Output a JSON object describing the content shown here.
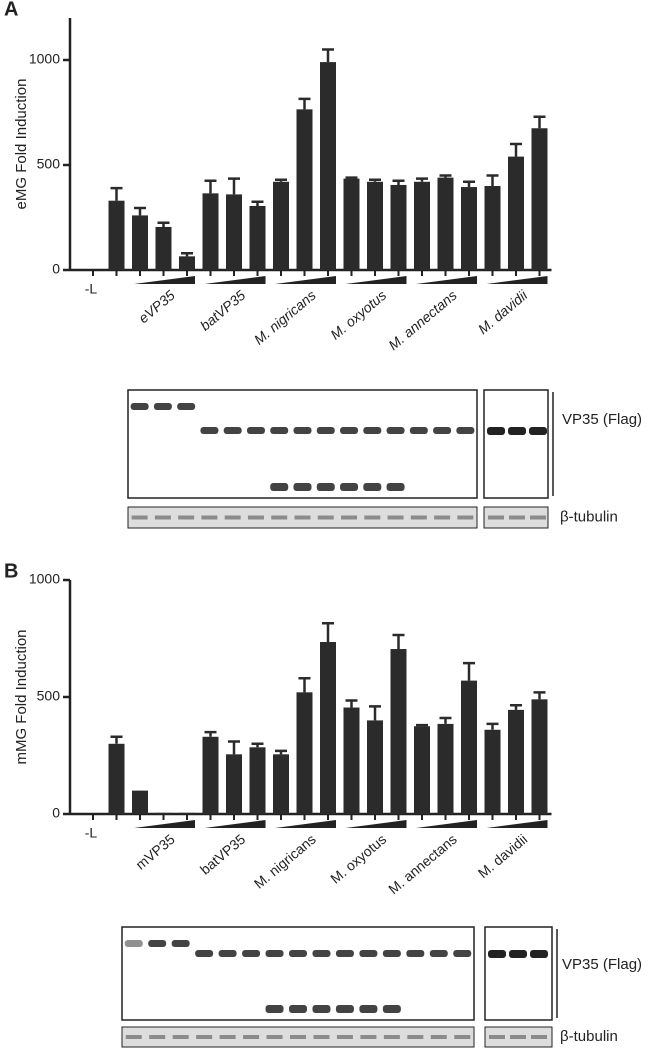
{
  "chart_data": [
    {
      "type": "bar",
      "panel_label": "A",
      "y_label": "eMG Fold Induction",
      "categories": [
        "-L",
        null,
        null,
        "eVP35",
        null,
        null,
        "batVP35",
        null,
        null,
        "M. nigricans",
        null,
        null,
        "M. oxyotus",
        null,
        null,
        "M. annectans",
        null,
        null,
        "M. davidii",
        null
      ],
      "values": [
        0,
        330,
        260,
        205,
        65,
        365,
        360,
        305,
        420,
        765,
        990,
        435,
        420,
        405,
        420,
        440,
        395,
        400,
        540,
        675
      ],
      "errors": [
        0,
        60,
        35,
        20,
        15,
        60,
        75,
        20,
        10,
        50,
        60,
        5,
        10,
        20,
        15,
        10,
        25,
        50,
        60,
        55
      ],
      "color": "#2b2b2b",
      "ylim": [
        0,
        1200
      ],
      "yticks": [
        0,
        500,
        1000
      ],
      "blot_labels": [
        "VP35 (Flag)",
        "β-tubulin"
      ]
    },
    {
      "type": "bar",
      "panel_label": "B",
      "y_label": "mMG Fold Induction",
      "categories": [
        "-L",
        null,
        null,
        "mVP35",
        null,
        null,
        "batVP35",
        null,
        null,
        "M. nigricans",
        null,
        null,
        "M. oxyotus",
        null,
        null,
        "M. annectans",
        null,
        null,
        "M. davidii",
        null
      ],
      "values": [
        0,
        300,
        100,
        5,
        5,
        330,
        255,
        285,
        255,
        520,
        735,
        455,
        400,
        705,
        375,
        385,
        570,
        360,
        445,
        490
      ],
      "errors": [
        0,
        30,
        0,
        0,
        0,
        20,
        55,
        15,
        15,
        60,
        80,
        30,
        60,
        60,
        5,
        25,
        75,
        25,
        20,
        30
      ],
      "color": "#2b2b2b",
      "ylim": [
        0,
        1000
      ],
      "yticks": [
        0,
        500,
        1000
      ],
      "blot_labels": [
        "VP35 (Flag)",
        "β-tubulin"
      ]
    }
  ]
}
